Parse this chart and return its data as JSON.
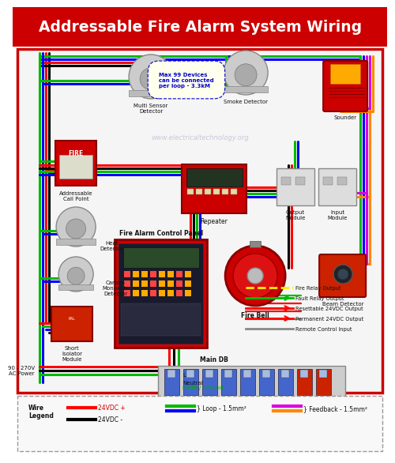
{
  "title": "Addressable Fire Alarm System Wiring",
  "title_bg": "#cc0000",
  "title_color": "#ffffff",
  "bg_color": "#ffffff",
  "border_color": "#cc0000",
  "website": "www.electricaltechnology.org",
  "wire_colors": {
    "red": "#ff0000",
    "black": "#000000",
    "green": "#00bb00",
    "blue": "#0000ff",
    "yellow": "#ffee00",
    "magenta": "#dd00dd",
    "orange": "#ff8800",
    "gray": "#888888"
  },
  "max_note": "Max 99 Devices\ncan be connected\nper loop - 3.3kM",
  "output_labels": [
    "Fire Relay Output",
    "Fault Relay Output",
    "Resettable 24VDC Output",
    "Permanent 24VDC Output",
    "Remote Control Input"
  ],
  "output_wire_colors": [
    "#ffee00",
    "#00bb00",
    "#ff0000",
    "#ff0000",
    "#888888"
  ],
  "output_arrows": [
    false,
    true,
    true,
    true,
    false
  ],
  "power_label1": "90 - 270V",
  "power_label2": "AC Power",
  "neutral_label": "Neutral",
  "earth_label": "Earth / Ground"
}
